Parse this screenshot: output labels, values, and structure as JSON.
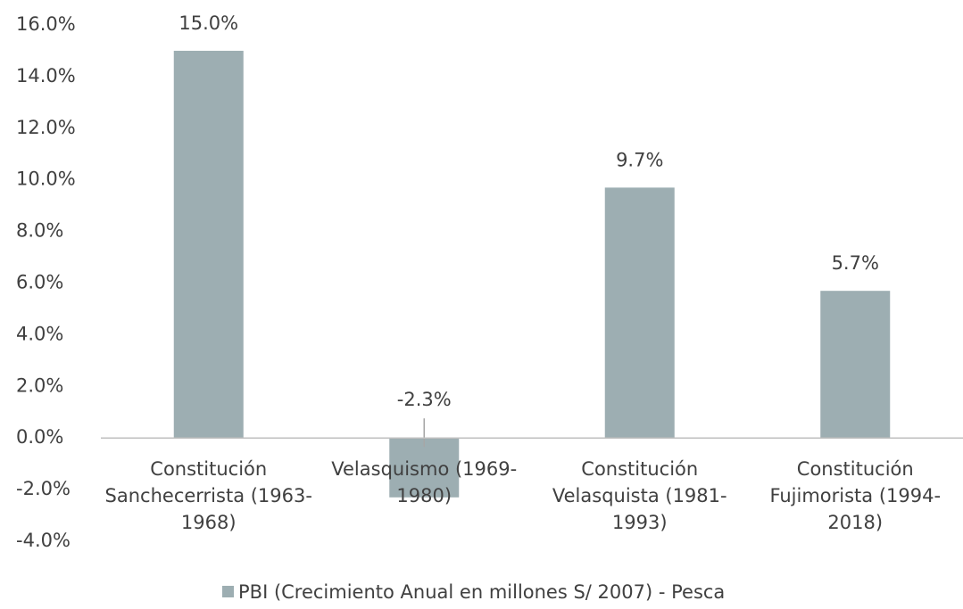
{
  "chart_data": {
    "type": "bar",
    "categories": [
      "Constitución Sanchecerrista (1963-1968)",
      "Velasquismo (1969-1980)",
      "Constitución Velasquista (1981-1993)",
      "Constitución Fujimorista (1994-2018)"
    ],
    "series": [
      {
        "name": "PBI (Crecimiento Anual en millones S/ 2007) - Pesca",
        "color": "#9daeb2",
        "values": [
          15.0,
          -2.3,
          9.7,
          5.7
        ],
        "value_labels": [
          "15.0%",
          "-2.3%",
          "9.7%",
          "5.7%"
        ]
      }
    ],
    "ylim": [
      -4,
      16
    ],
    "yticks": [
      {
        "value": -4,
        "label": "-4.0%"
      },
      {
        "value": -2,
        "label": "-2.0%"
      },
      {
        "value": 0,
        "label": "0.0%"
      },
      {
        "value": 2,
        "label": "2.0%"
      },
      {
        "value": 4,
        "label": "4.0%"
      },
      {
        "value": 6,
        "label": "6.0%"
      },
      {
        "value": 8,
        "label": "8.0%"
      },
      {
        "value": 10,
        "label": "10.0%"
      },
      {
        "value": 12,
        "label": "12.0%"
      },
      {
        "value": 14,
        "label": "14.0%"
      },
      {
        "value": 16,
        "label": "16.0%"
      }
    ],
    "grid": false,
    "legend": "bottom"
  }
}
